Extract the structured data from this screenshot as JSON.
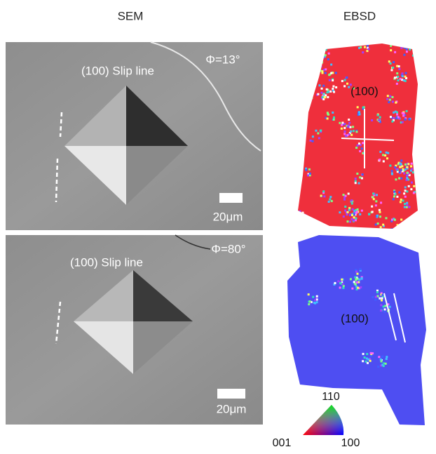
{
  "header": {
    "left": "SEM",
    "right": "EBSD"
  },
  "panels": [
    {
      "sem": {
        "label": "(100) Slip line",
        "angle": "Φ=13°",
        "scale": "20μm"
      },
      "ebsd": {
        "label": "(100)"
      }
    },
    {
      "sem": {
        "label": "(100) Slip line",
        "angle": "Φ=80°",
        "scale": "20μm"
      },
      "ebsd": {
        "label": "(100)"
      }
    }
  ],
  "legend": {
    "top": "110",
    "left": "001",
    "right": "100"
  }
}
